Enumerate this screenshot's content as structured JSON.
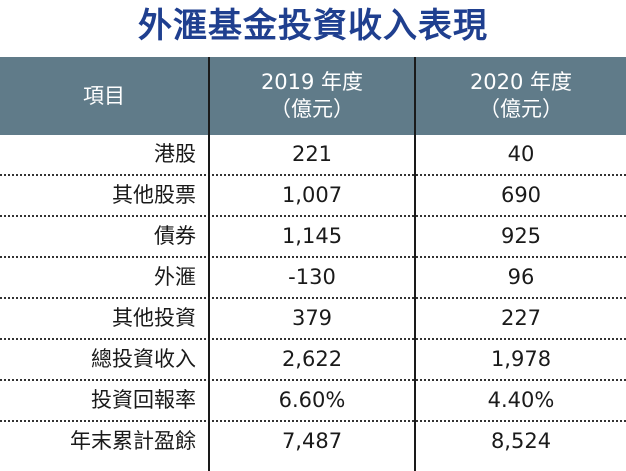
{
  "title": "外滙基金投資收入表現",
  "header": {
    "col1": "項目",
    "col2_line1": "2019 年度",
    "col2_line2": "（億元）",
    "col3_line1": "2020 年度",
    "col3_line2": "（億元）"
  },
  "rows": [
    {
      "label": "港股",
      "v2019": "221",
      "v2020": "40"
    },
    {
      "label": "其他股票",
      "v2019": "1,007",
      "v2020": "690"
    },
    {
      "label": "債券",
      "v2019": "1,145",
      "v2020": "925"
    },
    {
      "label": "外滙",
      "v2019": "-130",
      "v2020": "96"
    },
    {
      "label": "其他投資",
      "v2019": "379",
      "v2020": "227"
    },
    {
      "label": "總投資收入",
      "v2019": "2,622",
      "v2020": "1,978"
    },
    {
      "label": "投資回報率",
      "v2019": "6.60%",
      "v2020": "4.40%"
    },
    {
      "label": "年末累計盈餘",
      "v2019": "7,487",
      "v2020": "8,524"
    }
  ],
  "colors": {
    "title": "#1f3f8f",
    "header_bg": "#607b89",
    "header_text": "#ffffff"
  }
}
